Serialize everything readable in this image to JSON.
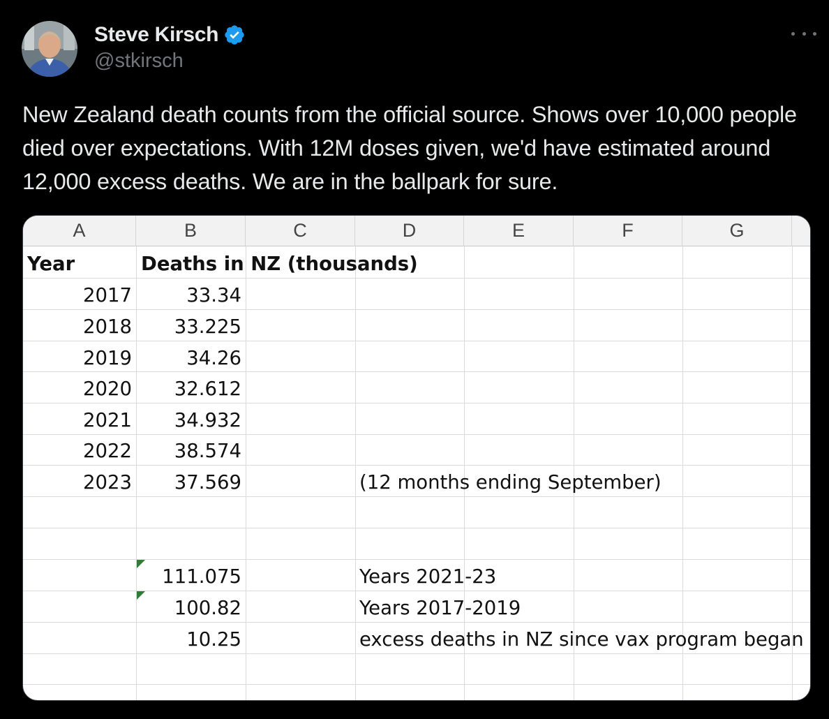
{
  "author": {
    "name": "Steve Kirsch",
    "handle": "@stkirsch",
    "verified": true,
    "avatar_icon": "profile-photo"
  },
  "tweet": {
    "text": "New Zealand death counts from the official source. Shows over 10,000 people died over expectations. With 12M doses given, we'd have estimated around 12,000 excess deaths. We are in the ballpark for sure."
  },
  "spreadsheet": {
    "columns": [
      "A",
      "B",
      "C",
      "D",
      "E",
      "F",
      "G"
    ],
    "header": {
      "a": "Year",
      "b": "Deaths in NZ (thousands)"
    },
    "rows": [
      {
        "year": "2017",
        "deaths": "33.34"
      },
      {
        "year": "2018",
        "deaths": "33.225"
      },
      {
        "year": "2019",
        "deaths": "34.26"
      },
      {
        "year": "2020",
        "deaths": "32.612"
      },
      {
        "year": "2021",
        "deaths": "34.932"
      },
      {
        "year": "2022",
        "deaths": "38.574"
      },
      {
        "year": "2023",
        "deaths": "37.569",
        "note": "(12 months ending September)"
      }
    ],
    "summary": [
      {
        "value": "111.075",
        "label": "Years 2021-23"
      },
      {
        "value": "100.82",
        "label": "Years 2017-2019"
      },
      {
        "value": "10.25",
        "label": "excess deaths in NZ since vax program began"
      }
    ]
  },
  "colors": {
    "background": "#000000",
    "text": "#e7e9ea",
    "muted": "#71767b",
    "verified": "#1d9bf0",
    "note_marker": "#2e7d32"
  }
}
